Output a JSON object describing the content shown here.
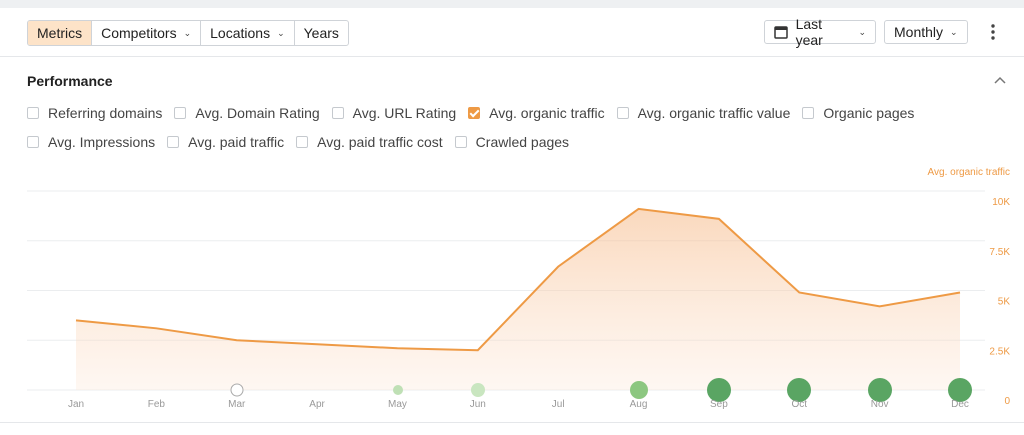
{
  "toolbar": {
    "tabs": [
      {
        "label": "Metrics",
        "active": true,
        "dropdown": false
      },
      {
        "label": "Competitors",
        "active": false,
        "dropdown": true
      },
      {
        "label": "Locations",
        "active": false,
        "dropdown": true
      },
      {
        "label": "Years",
        "active": false,
        "dropdown": false
      }
    ],
    "period": "Last year",
    "interval": "Monthly"
  },
  "section": {
    "title": "Performance",
    "metrics": [
      [
        {
          "label": "Referring domains",
          "checked": false
        },
        {
          "label": "Avg. Domain Rating",
          "checked": false
        },
        {
          "label": "Avg. URL Rating",
          "checked": false
        },
        {
          "label": "Avg. organic traffic",
          "checked": true
        },
        {
          "label": "Avg. organic traffic value",
          "checked": false
        },
        {
          "label": "Organic pages",
          "checked": false
        }
      ],
      [
        {
          "label": "Avg. Impressions",
          "checked": false
        },
        {
          "label": "Avg. paid traffic",
          "checked": false
        },
        {
          "label": "Avg. paid traffic cost",
          "checked": false
        },
        {
          "label": "Crawled pages",
          "checked": false
        }
      ]
    ]
  },
  "chart_data": {
    "type": "area",
    "categories": [
      "Jan",
      "Feb",
      "Mar",
      "Apr",
      "May",
      "Jun",
      "Jul",
      "Aug",
      "Sep",
      "Oct",
      "Nov",
      "Dec"
    ],
    "series": [
      {
        "name": "Avg. organic traffic",
        "color": "#ee9a45",
        "values": [
          3500,
          3100,
          2500,
          2300,
          2100,
          2000,
          6200,
          9100,
          8600,
          4900,
          4200,
          4900
        ]
      }
    ],
    "ylim": [
      0,
      10000
    ],
    "yticks": [
      {
        "value": 0,
        "label": "0"
      },
      {
        "value": 2500,
        "label": "2.5K"
      },
      {
        "value": 5000,
        "label": "5K"
      },
      {
        "value": 7500,
        "label": "7.5K"
      },
      {
        "value": 10000,
        "label": "10K"
      }
    ],
    "grid": true
  }
}
